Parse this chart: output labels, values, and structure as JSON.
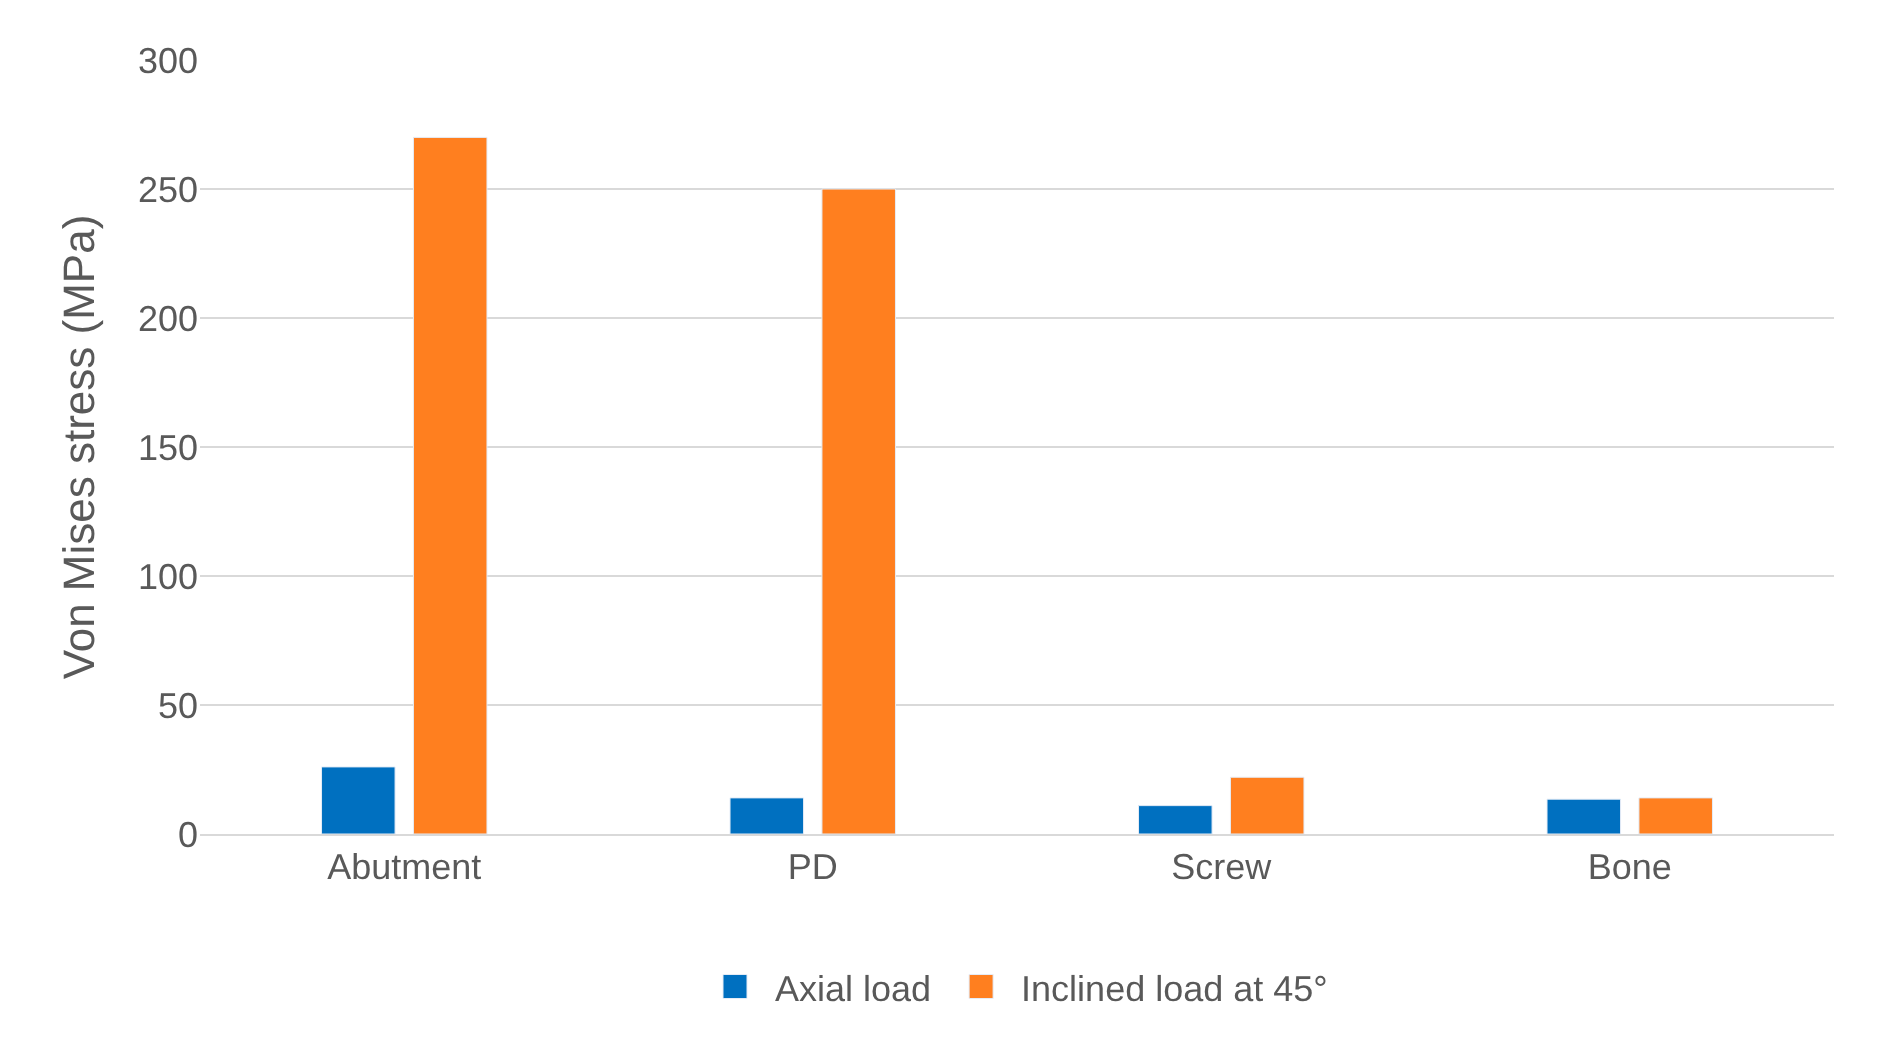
{
  "chart_data": {
    "type": "bar",
    "ylabel": "Von Mises stress (MPa)",
    "categories": [
      "Abutment",
      "PD",
      "Screw",
      "Bone"
    ],
    "series": [
      {
        "name": "Axial load",
        "color": "#0070c0",
        "values": [
          26,
          14,
          11,
          13.5
        ]
      },
      {
        "name": "Inclined load at 45°",
        "color": "#ff7f1f",
        "values": [
          270,
          250,
          22,
          14
        ]
      }
    ],
    "ylim": [
      0,
      300
    ],
    "yticks": [
      0,
      50,
      100,
      150,
      200,
      250,
      300
    ],
    "grid": "y",
    "legend": "bottom"
  }
}
